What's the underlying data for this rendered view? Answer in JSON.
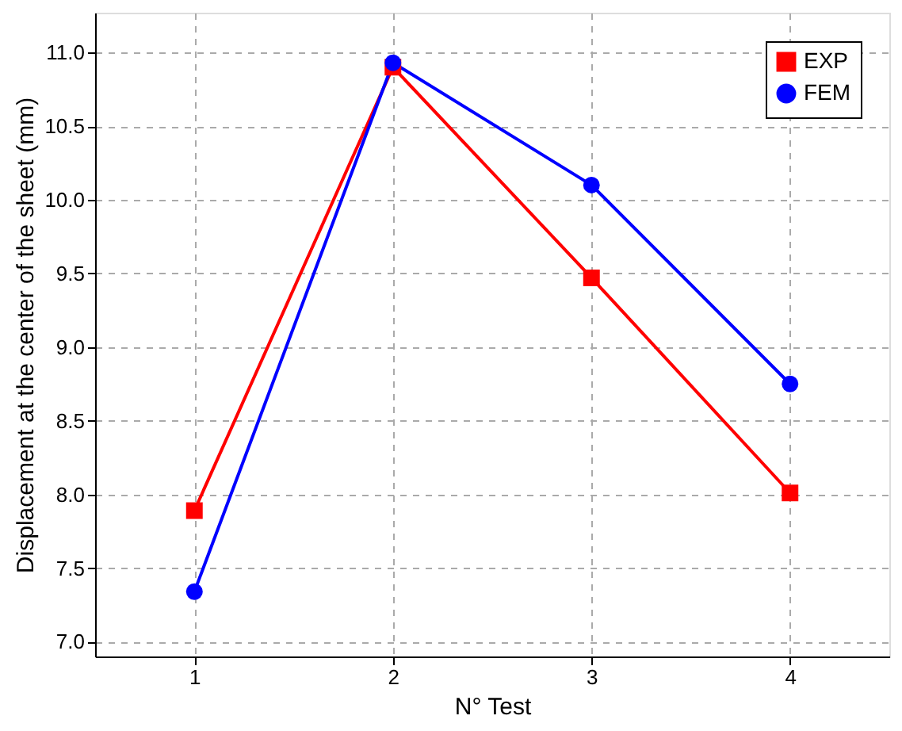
{
  "chart_data": {
    "type": "line",
    "xlabel": "N° Test",
    "ylabel": "Displacement at the center of the sheet (mm)",
    "x": [
      1,
      2,
      3,
      4
    ],
    "series": [
      {
        "name": "EXP",
        "color": "#ff0000",
        "marker": "square",
        "values": [
          7.89,
          10.9,
          9.47,
          8.01
        ]
      },
      {
        "name": "FEM",
        "color": "#0000ff",
        "marker": "circle",
        "values": [
          7.34,
          10.93,
          10.1,
          8.75
        ]
      }
    ],
    "xlim": [
      0.5,
      4.5
    ],
    "xticks": [
      1,
      2,
      3,
      4
    ],
    "ylim": [
      6.9,
      11.27
    ],
    "yticks": [
      {
        "value": 7,
        "label": "7.0"
      },
      7.5,
      {
        "value": 8,
        "label": "8.0"
      },
      8.5,
      {
        "value": 9,
        "label": "9.0"
      },
      9.5,
      {
        "value": 10,
        "label": "10.0"
      },
      10.5,
      {
        "value": 11,
        "label": "11.0"
      }
    ],
    "grid": true,
    "legend": "top right",
    "line_style": "solid"
  }
}
